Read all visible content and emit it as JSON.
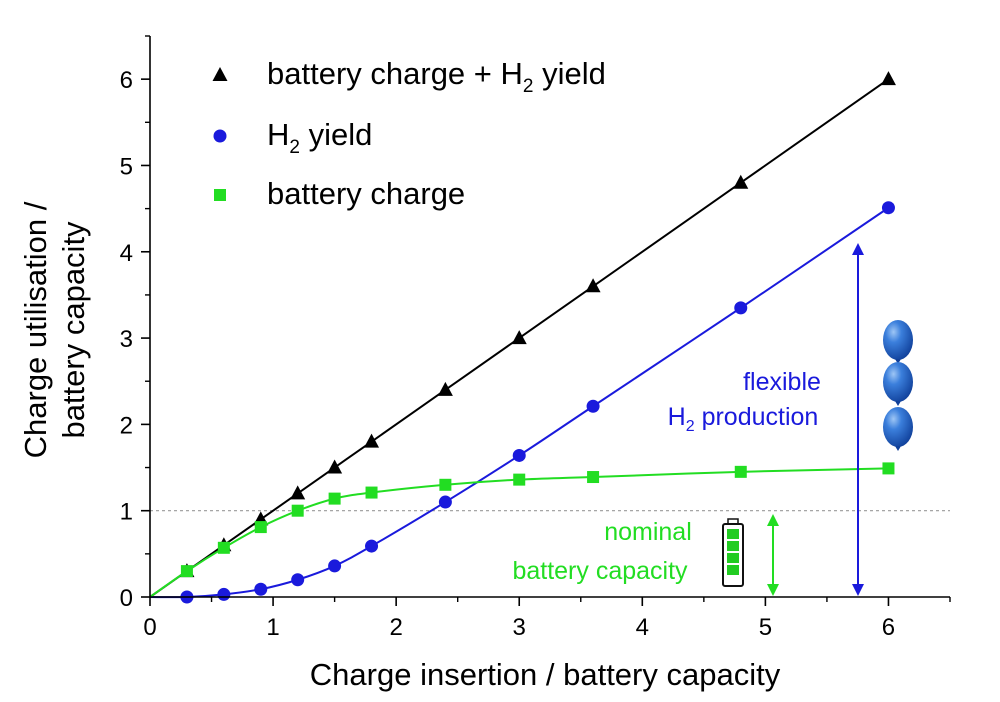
{
  "chart_data": {
    "type": "line",
    "xlabel": "Charge insertion / battery capacity",
    "ylabel_line1": "Charge utilisation /",
    "ylabel_line2": "battery capacity",
    "xlim": [
      0,
      6.5
    ],
    "ylim": [
      0,
      6.5
    ],
    "xticks": [
      "0",
      "1",
      "2",
      "3",
      "4",
      "5",
      "6"
    ],
    "yticks": [
      "0",
      "1",
      "2",
      "3",
      "4",
      "5",
      "6"
    ],
    "reference_line_y": 1,
    "legend_position": "top-left",
    "series": [
      {
        "key": "total",
        "legend_main": "battery charge + H",
        "legend_sub": "2",
        "legend_tail": " yield",
        "color": "#000000",
        "marker": "triangle",
        "x": [
          0.3,
          0.6,
          0.9,
          1.2,
          1.5,
          1.8,
          2.4,
          3.0,
          3.6,
          4.8,
          6.0
        ],
        "y": [
          0.3,
          0.6,
          0.9,
          1.2,
          1.5,
          1.8,
          2.4,
          3.0,
          3.6,
          4.8,
          6.0
        ]
      },
      {
        "key": "h2",
        "legend_main": "H",
        "legend_sub": "2",
        "legend_tail": " yield",
        "color": "#1a1adc",
        "marker": "circle",
        "x": [
          0.3,
          0.6,
          0.9,
          1.2,
          1.5,
          1.8,
          2.4,
          3.0,
          3.6,
          4.8,
          6.0
        ],
        "y": [
          0.0,
          0.03,
          0.09,
          0.2,
          0.36,
          0.59,
          1.1,
          1.64,
          2.21,
          3.35,
          4.51
        ]
      },
      {
        "key": "battery",
        "legend_main": "battery charge",
        "legend_sub": "",
        "legend_tail": "",
        "color": "#22dd22",
        "marker": "square",
        "x": [
          0.3,
          0.6,
          0.9,
          1.2,
          1.5,
          1.8,
          2.4,
          3.0,
          3.6,
          4.8,
          6.0
        ],
        "y": [
          0.3,
          0.57,
          0.81,
          1.0,
          1.14,
          1.21,
          1.3,
          1.36,
          1.39,
          1.45,
          1.49
        ]
      }
    ],
    "annotations": {
      "flexible_line1": "flexible",
      "flexible_line2_main": "H",
      "flexible_line2_sub": "2",
      "flexible_line2_tail": " production",
      "flexible_color": "#1a1adc",
      "nominal_line1": "nominal",
      "nominal_line2": "battery capacity",
      "nominal_color": "#22dd22"
    },
    "icons": {
      "balloon": "balloon-icon",
      "battery": "battery-icon"
    }
  }
}
